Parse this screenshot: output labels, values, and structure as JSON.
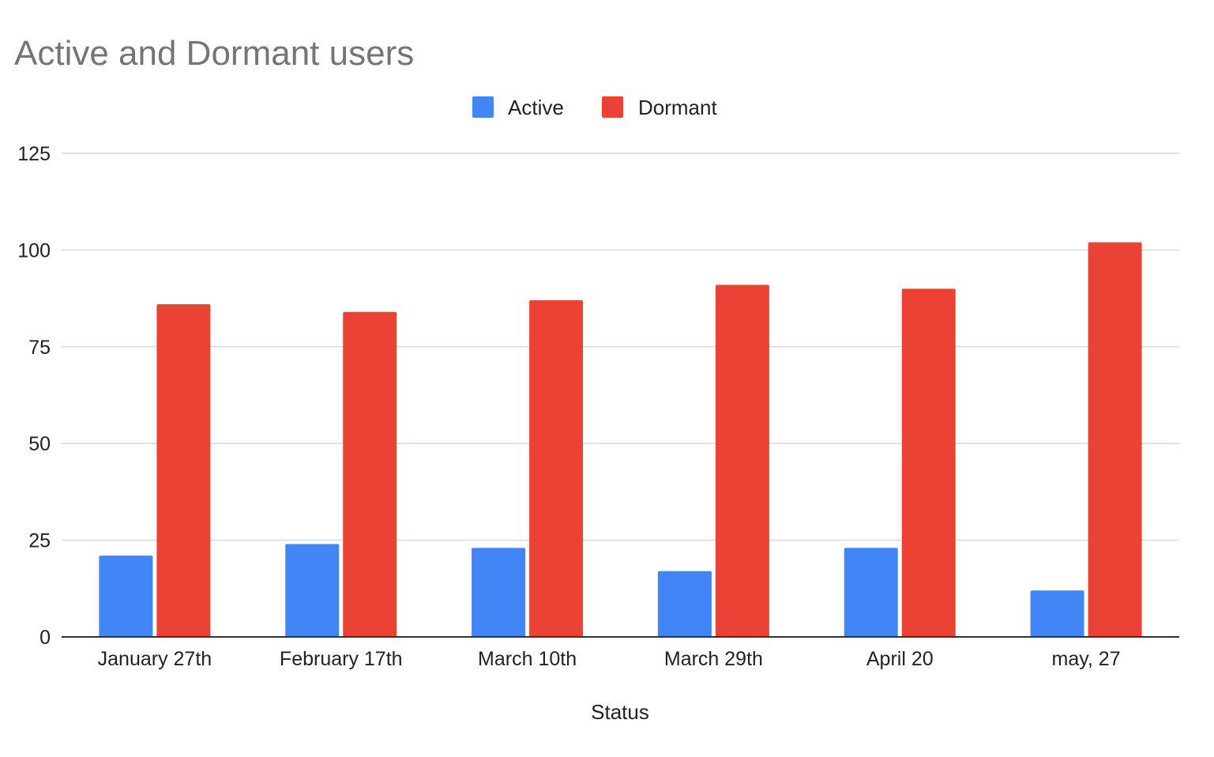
{
  "chart_data": {
    "type": "bar",
    "title": "Active and Dormant users",
    "xlabel": "Status",
    "ylabel": "",
    "categories": [
      "January 27th",
      "February 17th",
      "March 10th",
      "March 29th",
      "April 20",
      "may, 27"
    ],
    "series": [
      {
        "name": "Active",
        "color": "#4285f4",
        "values": [
          21,
          24,
          23,
          17,
          23,
          12
        ]
      },
      {
        "name": "Dormant",
        "color": "#ea4335",
        "values": [
          86,
          84,
          87,
          91,
          90,
          102
        ]
      }
    ],
    "ylim": [
      0,
      125
    ],
    "yticks": [
      "0",
      "25",
      "50",
      "75",
      "100",
      "125"
    ],
    "grid": true,
    "legend_position": "top"
  }
}
